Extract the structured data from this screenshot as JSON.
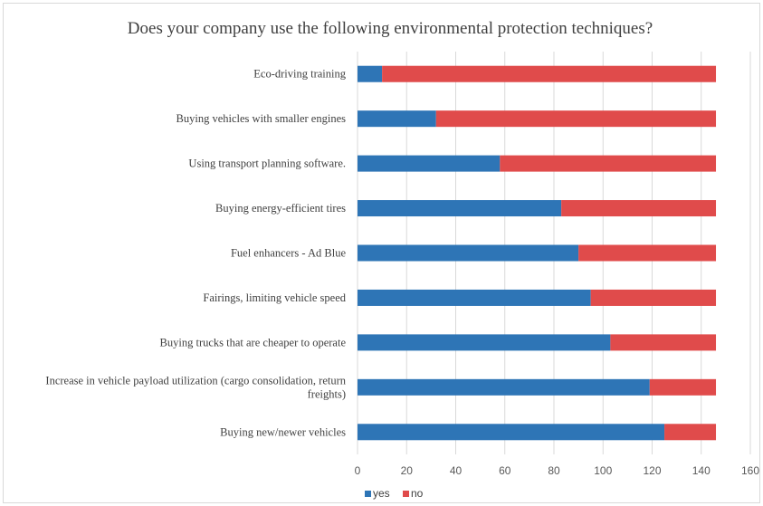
{
  "chart_data": {
    "type": "bar",
    "orientation": "horizontal",
    "stacked": true,
    "title": "Does your company use the following environmental protection techniques?",
    "categories": [
      [
        "Eco-driving training"
      ],
      [
        "Buying vehicles with smaller engines"
      ],
      [
        "Using transport planning software."
      ],
      [
        "Buying energy-efficient tires"
      ],
      [
        "Fuel enhancers - Ad Blue"
      ],
      [
        "Fairings, limiting vehicle speed"
      ],
      [
        "Buying trucks that are cheaper to operate"
      ],
      [
        "Increase in vehicle payload utilization (cargo consolidation, return",
        "freights)"
      ],
      [
        "Buying new/newer vehicles"
      ]
    ],
    "series": [
      {
        "name": "yes",
        "color": "#2e75b6",
        "values": [
          10,
          32,
          58,
          83,
          90,
          95,
          103,
          119,
          125
        ]
      },
      {
        "name": "no",
        "color": "#e04b4b",
        "values": [
          136,
          114,
          88,
          63,
          56,
          51,
          43,
          27,
          21
        ]
      }
    ],
    "xlim": [
      0,
      160
    ],
    "xticks": [
      "0",
      "20",
      "40",
      "60",
      "80",
      "100",
      "120",
      "140",
      "160"
    ],
    "grid": true,
    "legend_position": "bottom-left"
  }
}
